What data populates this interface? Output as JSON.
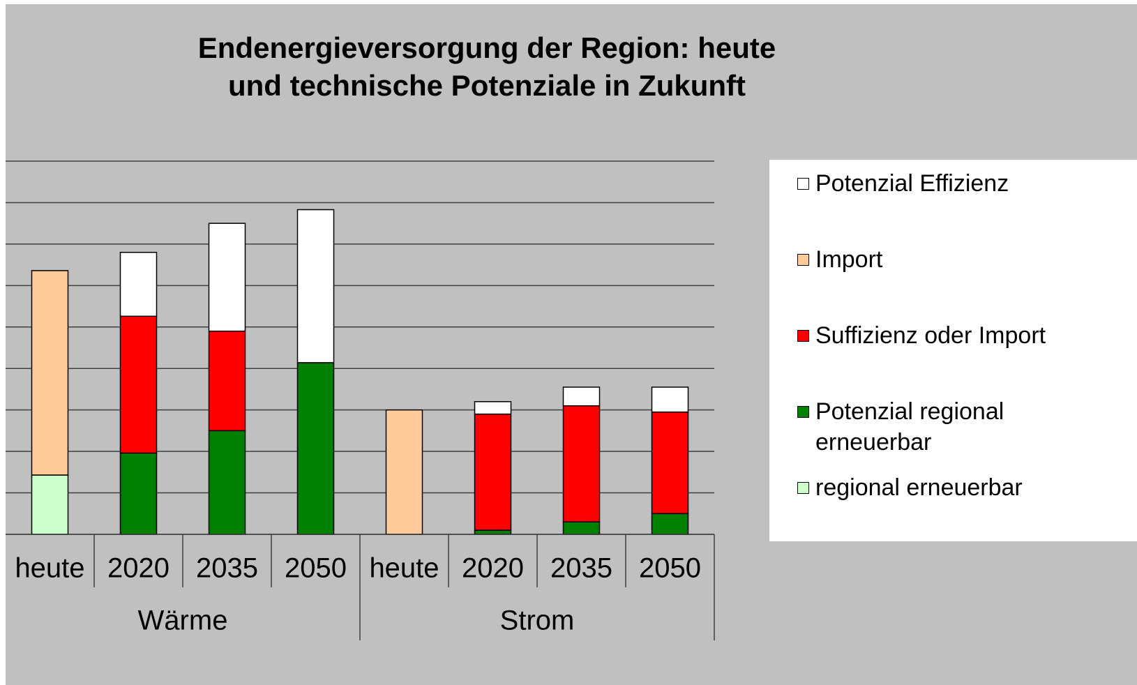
{
  "chart_data": {
    "type": "stacked_bar",
    "title": "Endenergieversorgung der Region: heute und technische Potenziale in Zukunft",
    "groups": [
      {
        "label": "Wärme",
        "categories": [
          "heute",
          "2020",
          "2035",
          "2050"
        ]
      },
      {
        "label": "Strom",
        "categories": [
          "heute",
          "2020",
          "2035",
          "2050"
        ]
      }
    ],
    "series": [
      {
        "name": "regional erneuerbar",
        "color": "#ccffcc",
        "values": [
          1.43,
          0,
          0,
          0,
          0,
          0,
          0,
          0
        ]
      },
      {
        "name": "Potenzial regional erneuerbar",
        "color": "#008000",
        "values": [
          0,
          1.96,
          2.5,
          4.14,
          0,
          0.1,
          0.3,
          0.5
        ]
      },
      {
        "name": "Suffizienz oder Import",
        "color": "#ff0000",
        "values": [
          0,
          3.3,
          2.4,
          0,
          0,
          2.8,
          2.8,
          2.45
        ]
      },
      {
        "name": "Import",
        "color": "#ffcc99",
        "values": [
          4.93,
          0,
          0,
          0,
          3.0,
          0,
          0,
          0
        ]
      },
      {
        "name": "Potenzial Effizienz",
        "color": "#ffffff",
        "values": [
          0,
          1.54,
          2.6,
          3.69,
          0,
          0.3,
          0.45,
          0.6
        ]
      }
    ],
    "ylim": [
      0,
      9
    ],
    "yticks": [
      0,
      1,
      2,
      3,
      4,
      5,
      6,
      7,
      8,
      9
    ],
    "grid": true,
    "tick_labels": false,
    "legend": "right"
  }
}
